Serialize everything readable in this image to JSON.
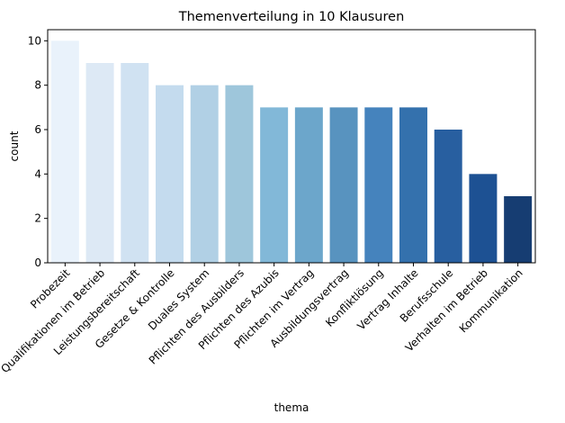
{
  "chart_data": {
    "type": "bar",
    "title": "Themenverteilung in 10 Klausuren",
    "xlabel": "thema",
    "ylabel": "count",
    "ylim": [
      0,
      10.5
    ],
    "yticks": [
      "0",
      "2",
      "4",
      "6",
      "8",
      "10"
    ],
    "grid": false,
    "legend": "none",
    "palette": "Blues",
    "categories": [
      "Probezeit",
      "Qualifikationen im Betrieb",
      "Leistungsbereitschaft",
      "Gesetze & Kontrolle",
      "Duales System",
      "Pflichten des Ausbilders",
      "Pflichten des Azubis",
      "Pflichten im Vertrag",
      "Ausbildungsvertrag",
      "Konfliktlösung",
      "Vertrag Inhalte",
      "Berufsschule",
      "Verhalten im Betrieb",
      "Kommunikation"
    ],
    "values": [
      10,
      9,
      9,
      8,
      8,
      8,
      7,
      7,
      7,
      7,
      7,
      6,
      4,
      3
    ],
    "colors": [
      "#e9f2fb",
      "#dde9f5",
      "#d0e2f2",
      "#c4dbee",
      "#b1d0e5",
      "#9ec6db",
      "#82b8d8",
      "#6ca6cb",
      "#5893bf",
      "#4583bd",
      "#3471ad",
      "#285fa0",
      "#1d5193",
      "#163d72"
    ]
  }
}
